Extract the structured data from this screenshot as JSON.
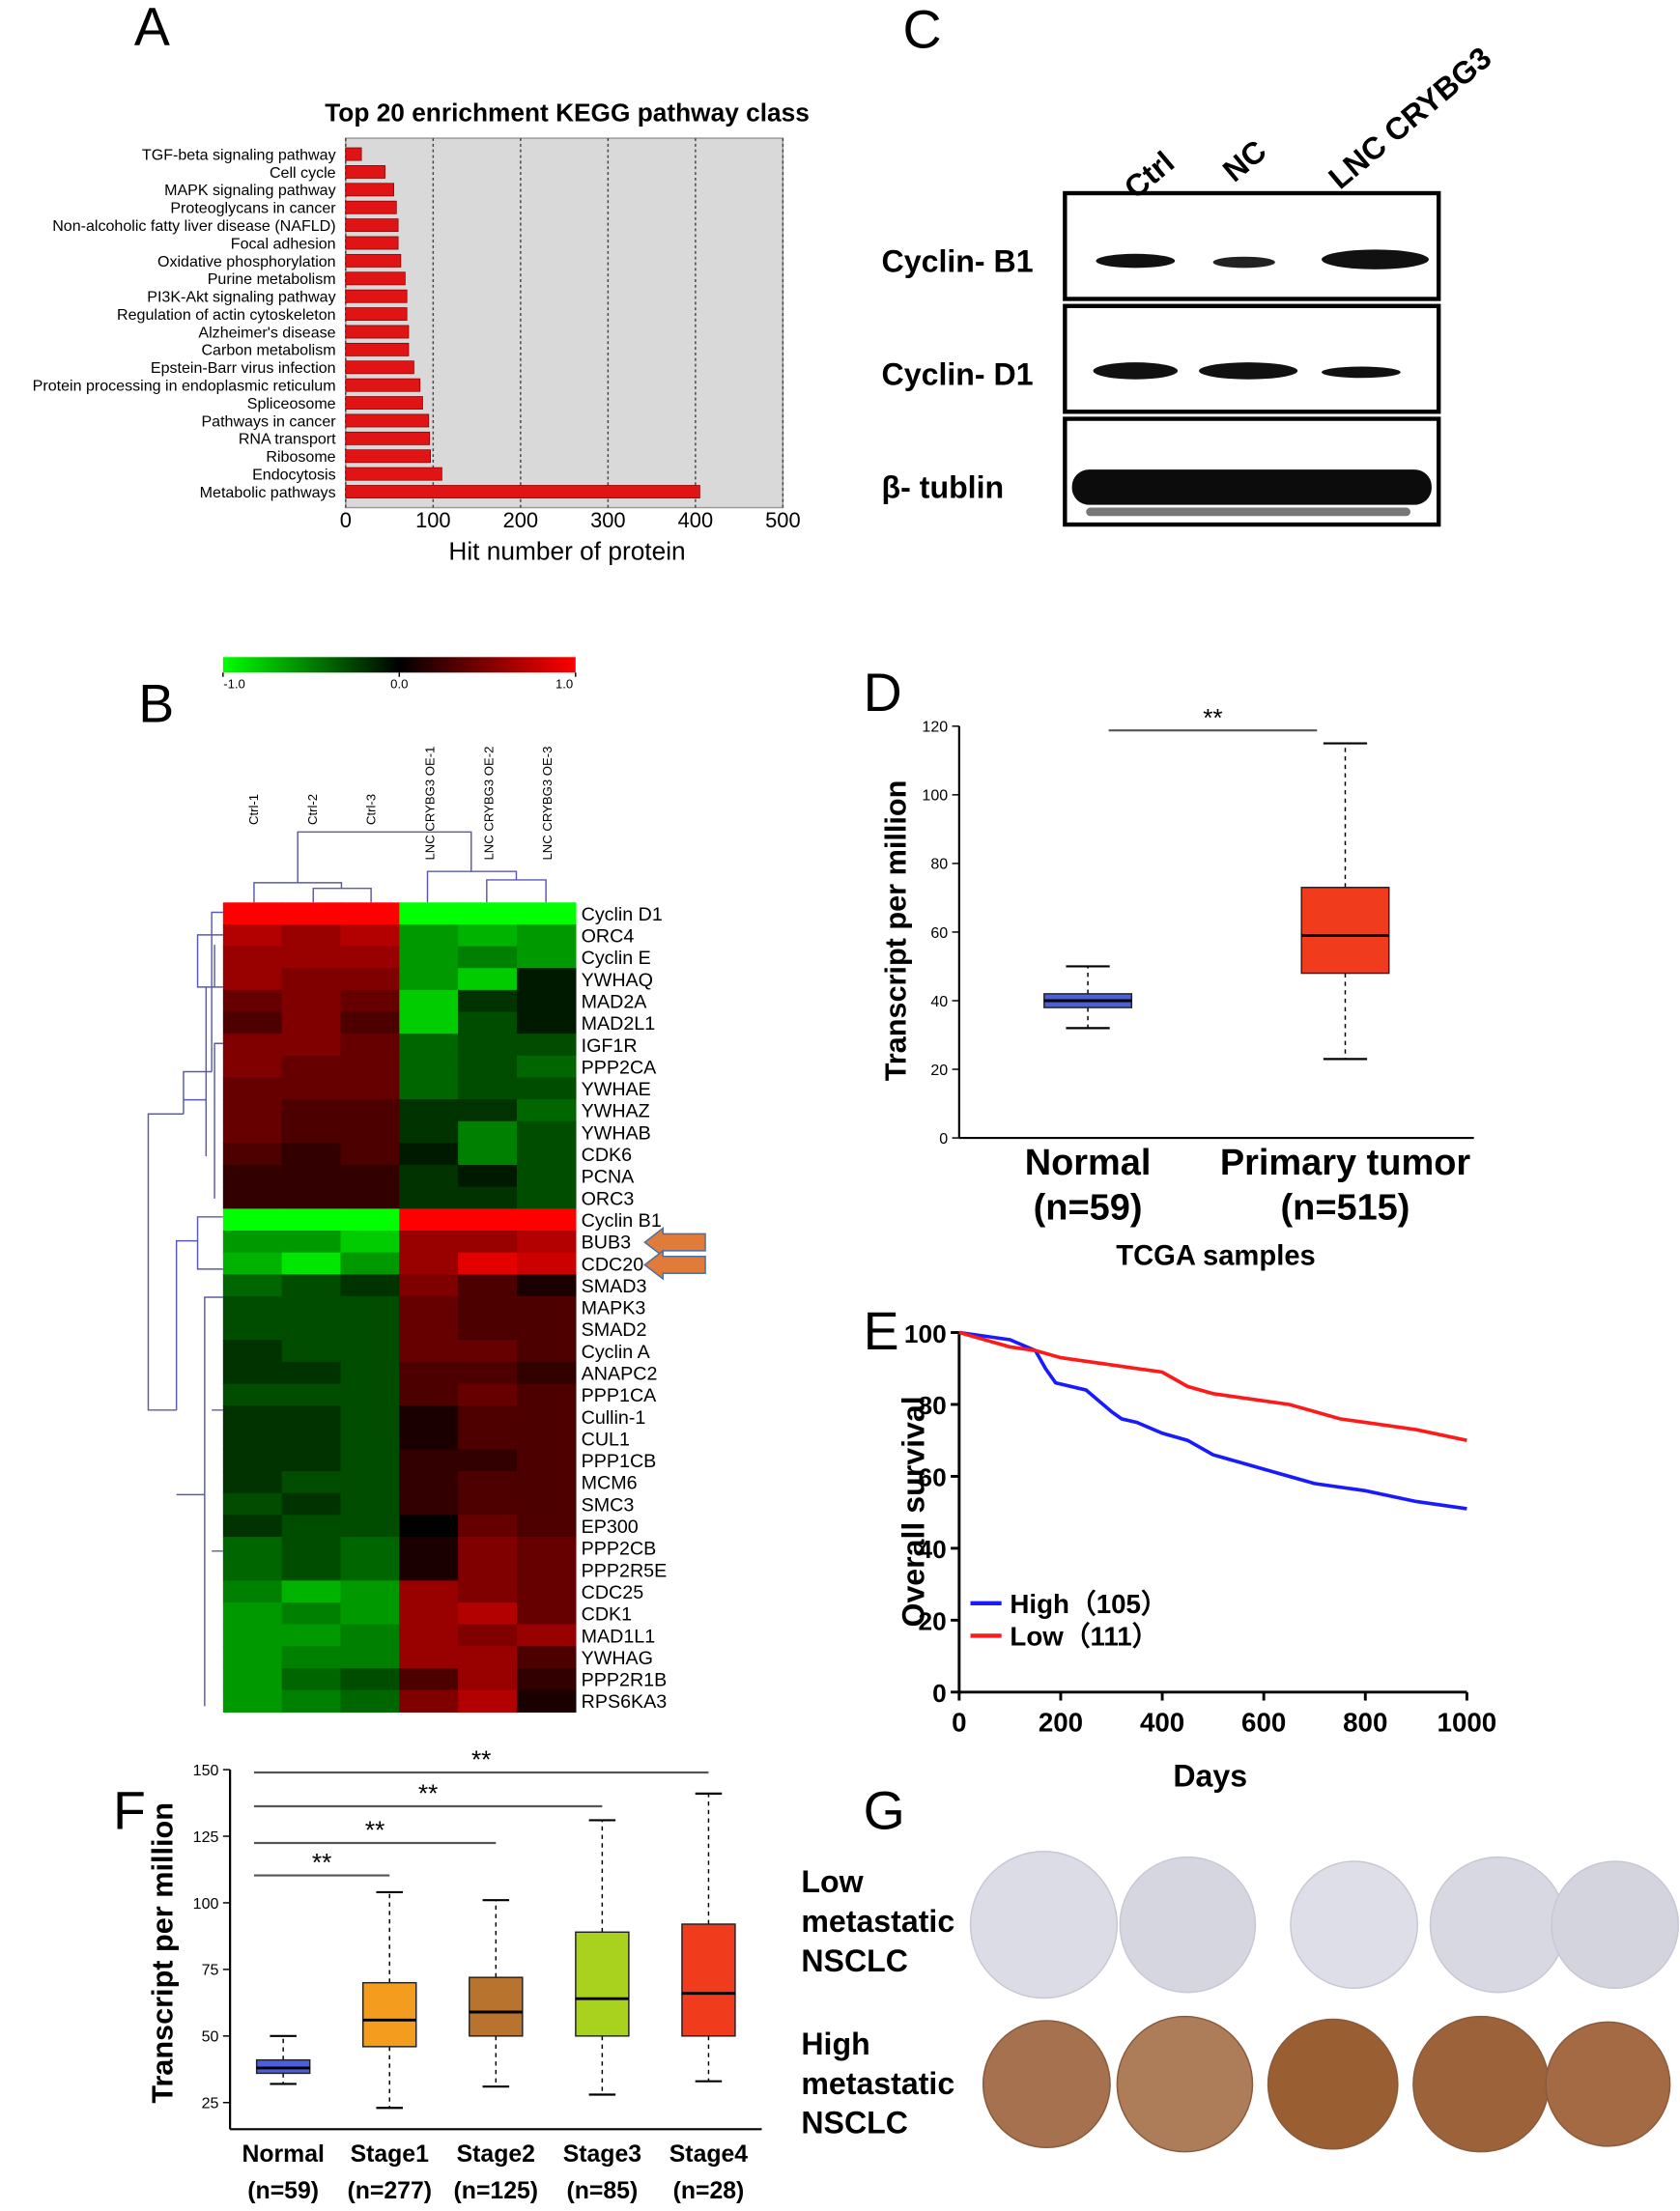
{
  "chart_data": [
    {
      "type": "bar",
      "panel": "A",
      "orientation": "horizontal",
      "title": "Top 20 enrichment KEGG pathway class",
      "xlabel": "Hit number of protein",
      "categories": [
        "TGF-beta signaling pathway",
        "Cell cycle",
        "MAPK signaling pathway",
        "Proteoglycans in cancer",
        "Non-alcoholic fatty liver disease (NAFLD)",
        "Focal adhesion",
        "Oxidative phosphorylation",
        "Purine metabolism",
        "PI3K-Akt signaling pathway",
        "Regulation of actin cytoskeleton",
        "Alzheimer's disease",
        "Carbon metabolism",
        "Epstein-Barr virus infection",
        "Protein processing in endoplasmic reticulum",
        "Spliceosome",
        "Pathways in cancer",
        "RNA transport",
        "Ribosome",
        "Endocytosis",
        "Metabolic pathways"
      ],
      "values": [
        18,
        45,
        55,
        58,
        60,
        60,
        63,
        68,
        70,
        70,
        72,
        72,
        78,
        85,
        88,
        95,
        96,
        97,
        110,
        405
      ],
      "color": "#e01414",
      "xlim": [
        0,
        500
      ],
      "xticks": [
        0,
        100,
        200,
        300,
        400,
        500
      ],
      "grid": true
    },
    {
      "type": "heatmap",
      "panel": "B",
      "x": [
        "Ctrl-1",
        "Ctrl-2",
        "Ctrl-3",
        "LNC CRYBG3 OE-1",
        "LNC CRYBG3 OE-2",
        "LNC CRYBG3 OE-3"
      ],
      "y": [
        "Cyclin D1",
        "ORC4",
        "Cyclin E",
        "YWHAQ",
        "MAD2A",
        "MAD2L1",
        "IGF1R",
        "PPP2CA",
        "YWHAE",
        "YWHAZ",
        "YWHAB",
        "CDK6",
        "PCNA",
        "ORC3",
        "Cyclin B1",
        "BUB3",
        "CDC20",
        "SMAD3",
        "MAPK3",
        "SMAD2",
        "Cyclin A",
        "ANAPC2",
        "PPP1CA",
        "Cullin-1",
        "CUL1",
        "PPP1CB",
        "MCM6",
        "SMC3",
        "EP300",
        "PPP2CB",
        "PPP2R5E",
        "CDC25",
        "CDK1",
        "MAD1L1",
        "YWHAG",
        "PPP2R1B",
        "RPS6KA3"
      ],
      "values": [
        [
          1,
          1,
          1,
          -1,
          -1,
          -1
        ],
        [
          0.7,
          0.6,
          0.7,
          -0.6,
          -0.7,
          -0.6
        ],
        [
          0.6,
          0.6,
          0.6,
          -0.6,
          -0.5,
          -0.6
        ],
        [
          0.6,
          0.5,
          0.5,
          -0.6,
          -0.8,
          -0.1
        ],
        [
          0.4,
          0.5,
          0.4,
          -0.8,
          -0.2,
          -0.1
        ],
        [
          0.3,
          0.5,
          0.3,
          -0.8,
          -0.3,
          -0.1
        ],
        [
          0.5,
          0.5,
          0.4,
          -0.4,
          -0.3,
          -0.3
        ],
        [
          0.5,
          0.4,
          0.4,
          -0.4,
          -0.3,
          -0.4
        ],
        [
          0.4,
          0.4,
          0.4,
          -0.4,
          -0.3,
          -0.3
        ],
        [
          0.4,
          0.3,
          0.3,
          -0.2,
          -0.2,
          -0.4
        ],
        [
          0.4,
          0.3,
          0.3,
          -0.2,
          -0.5,
          -0.3
        ],
        [
          0.3,
          0.2,
          0.3,
          -0.1,
          -0.5,
          -0.3
        ],
        [
          0.2,
          0.2,
          0.2,
          -0.2,
          -0.1,
          -0.3
        ],
        [
          0.2,
          0.2,
          0.2,
          -0.2,
          -0.2,
          -0.3
        ],
        [
          -1,
          -1,
          -1,
          1,
          1,
          1
        ],
        [
          -0.6,
          -0.6,
          -0.8,
          0.6,
          0.6,
          0.7
        ],
        [
          -0.7,
          -0.9,
          -0.6,
          0.6,
          0.9,
          0.8
        ],
        [
          -0.4,
          -0.3,
          -0.2,
          0.5,
          0.3,
          0.1
        ],
        [
          -0.3,
          -0.3,
          -0.3,
          0.4,
          0.3,
          0.3
        ],
        [
          -0.3,
          -0.3,
          -0.3,
          0.4,
          0.3,
          0.3
        ],
        [
          -0.2,
          -0.3,
          -0.3,
          0.4,
          0.4,
          0.3
        ],
        [
          -0.2,
          -0.2,
          -0.3,
          0.3,
          0.3,
          0.2
        ],
        [
          -0.3,
          -0.3,
          -0.3,
          0.3,
          0.4,
          0.3
        ],
        [
          -0.2,
          -0.2,
          -0.3,
          0.1,
          0.3,
          0.3
        ],
        [
          -0.2,
          -0.2,
          -0.3,
          0.1,
          0.3,
          0.3
        ],
        [
          -0.2,
          -0.2,
          -0.3,
          0.2,
          0.2,
          0.3
        ],
        [
          -0.2,
          -0.3,
          -0.3,
          0.2,
          0.3,
          0.3
        ],
        [
          -0.3,
          -0.2,
          -0.3,
          0.2,
          0.3,
          0.3
        ],
        [
          -0.2,
          -0.3,
          -0.3,
          0,
          0.4,
          0.3
        ],
        [
          -0.4,
          -0.3,
          -0.4,
          0.1,
          0.5,
          0.4
        ],
        [
          -0.4,
          -0.3,
          -0.4,
          0.1,
          0.5,
          0.4
        ],
        [
          -0.5,
          -0.7,
          -0.6,
          0.6,
          0.5,
          0.4
        ],
        [
          -0.6,
          -0.5,
          -0.6,
          0.6,
          0.7,
          0.4
        ],
        [
          -0.6,
          -0.6,
          -0.5,
          0.6,
          0.5,
          0.6
        ],
        [
          -0.6,
          -0.5,
          -0.5,
          0.6,
          0.6,
          0.3
        ],
        [
          -0.6,
          -0.4,
          -0.3,
          0.3,
          0.6,
          0.2
        ],
        [
          -0.6,
          -0.5,
          -0.4,
          0.5,
          0.7,
          0.1
        ]
      ],
      "zlim": [
        -1,
        1
      ],
      "colormap": [
        "#00ff00",
        "#000000",
        "#ff0000"
      ],
      "zticks": [
        {
          "value": -1,
          "label": "-1.0"
        },
        {
          "value": 0,
          "label": "0.0"
        },
        {
          "value": 1,
          "label": "1.0"
        }
      ]
    },
    {
      "type": "box",
      "panel": "D",
      "ylabel": "Transcript per million",
      "xlabel": "TCGA samples",
      "categories": [
        "Normal",
        "Primary tumor"
      ],
      "n_labels": [
        "(n=59)",
        "(n=515)"
      ],
      "boxes": [
        {
          "min": 32,
          "q1": 38,
          "median": 40,
          "q3": 42,
          "max": 50,
          "color": "#4a5fd8"
        },
        {
          "min": 23,
          "q1": 48,
          "median": 59,
          "q3": 73,
          "max": 115,
          "color": "#f03c1c"
        }
      ],
      "annotations": [
        "**"
      ],
      "ylim": [
        0,
        120
      ],
      "yticks": [
        0,
        20,
        40,
        60,
        80,
        100,
        120
      ]
    },
    {
      "type": "line",
      "panel": "E",
      "ylabel": "Overall survival",
      "xlabel": "Days",
      "series": [
        {
          "name": "High（105）",
          "color": "#1a1aff",
          "x": [
            0,
            50,
            100,
            150,
            170,
            190,
            250,
            300,
            320,
            350,
            400,
            450,
            500,
            550,
            600,
            650,
            700,
            800,
            900,
            1000
          ],
          "values": [
            100,
            99,
            98,
            95,
            90,
            86,
            84,
            78,
            76,
            75,
            72,
            70,
            66,
            64,
            62,
            60,
            58,
            56,
            53,
            51
          ]
        },
        {
          "name": "Low（111）",
          "color": "#ff1a1a",
          "x": [
            0,
            50,
            100,
            150,
            200,
            250,
            300,
            350,
            400,
            450,
            500,
            550,
            600,
            650,
            700,
            750,
            800,
            850,
            900,
            1000
          ],
          "values": [
            100,
            98,
            96,
            95,
            93,
            92,
            91,
            90,
            89,
            85,
            83,
            82,
            81,
            80,
            78,
            76,
            75,
            74,
            73,
            70
          ]
        }
      ],
      "xlim": [
        0,
        1000
      ],
      "xticks": [
        0,
        200,
        400,
        600,
        800,
        1000
      ],
      "ylim": [
        0,
        100
      ],
      "yticks": [
        0,
        20,
        40,
        60,
        80,
        100
      ]
    },
    {
      "type": "box",
      "panel": "F",
      "ylabel": "Transcript per million",
      "categories": [
        "Normal",
        "Stage1",
        "Stage2",
        "Stage3",
        "Stage4"
      ],
      "n_labels": [
        "(n=59)",
        "(n=277)",
        "(n=125)",
        "(n=85)",
        "(n=28)"
      ],
      "boxes": [
        {
          "min": 32,
          "q1": 36,
          "median": 38,
          "q3": 41,
          "max": 50,
          "color": "#4a5fd8"
        },
        {
          "min": 23,
          "q1": 46,
          "median": 56,
          "q3": 70,
          "max": 104,
          "color": "#f39c1e"
        },
        {
          "min": 31,
          "q1": 50,
          "median": 59,
          "q3": 72,
          "max": 101,
          "color": "#b8742f"
        },
        {
          "min": 28,
          "q1": 50,
          "median": 64,
          "q3": 89,
          "max": 131,
          "color": "#a8d21e"
        },
        {
          "min": 33,
          "q1": 50,
          "median": 66,
          "q3": 92,
          "max": 141,
          "color": "#f03c1c"
        }
      ],
      "annotations": [
        "**",
        "**",
        "**",
        "**"
      ],
      "ylim": [
        15,
        150
      ],
      "yticks": [
        25,
        50,
        75,
        100,
        125,
        150
      ]
    }
  ],
  "blot": {
    "panel": "C",
    "lanes": [
      "Ctrl",
      "NC",
      "LNC CRYBG3"
    ],
    "proteins": [
      "Cyclin- B1",
      "Cyclin- D1",
      "β- tublin"
    ]
  },
  "ihc": {
    "panel": "G",
    "groups": [
      [
        "Low",
        "metastatic",
        "NSCLC"
      ],
      [
        "High",
        "metastatic",
        "NSCLC"
      ]
    ]
  }
}
